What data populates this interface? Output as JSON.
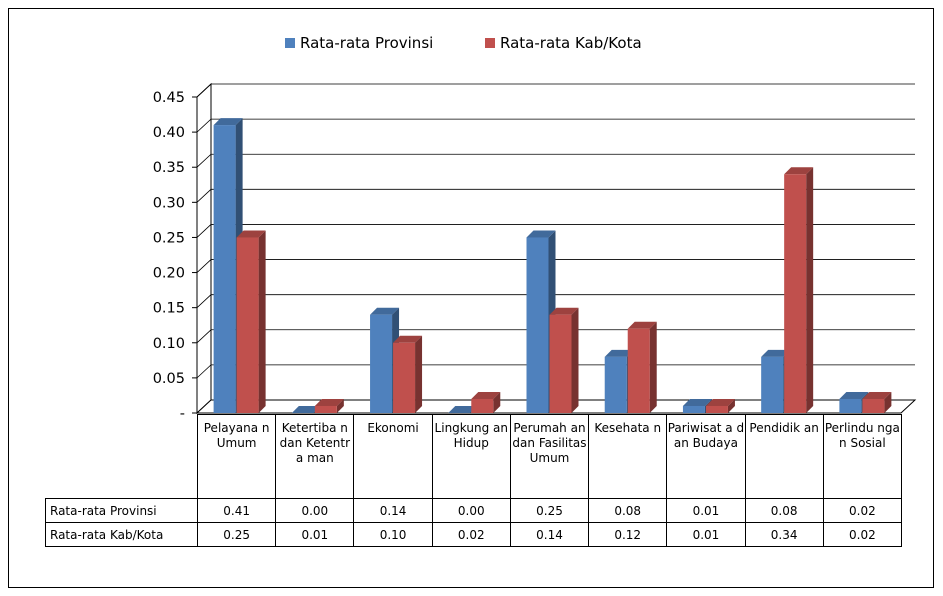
{
  "chart_data": {
    "type": "bar",
    "style": "3d-clustered-column",
    "categories": [
      "Pelayana n Umum",
      "Ketertiba n dan Ketentra man",
      "Ekonomi",
      "Lingkung an Hidup",
      "Perumah an dan Fasilitas Umum",
      "Kesehata n",
      "Pariwisat a dan Budaya",
      "Pendidik an",
      "Perlindu ngan Sosial"
    ],
    "series": [
      {
        "name": "Rata-rata Provinsi",
        "color": "#4F81BD",
        "values": [
          0.41,
          0.0,
          0.14,
          0.0,
          0.25,
          0.08,
          0.01,
          0.08,
          0.02
        ],
        "labels": [
          "0.41",
          "0.00",
          "0.14",
          "0.00",
          "0.25",
          "0.08",
          "0.01",
          "0.08",
          "0.02"
        ]
      },
      {
        "name": "Rata-rata Kab/Kota",
        "color": "#C0504D",
        "values": [
          0.25,
          0.01,
          0.1,
          0.02,
          0.14,
          0.12,
          0.01,
          0.34,
          0.02
        ],
        "labels": [
          "0.25",
          "0.01",
          "0.10",
          "0.02",
          "0.14",
          "0.12",
          "0.01",
          "0.34",
          "0.02"
        ]
      }
    ],
    "yticks": [
      "-",
      "0.05",
      "0.10",
      "0.15",
      "0.20",
      "0.25",
      "0.30",
      "0.35",
      "0.40",
      "0.45"
    ],
    "ylim": [
      0,
      0.45
    ],
    "grid": true,
    "legend": "top-center",
    "data_table": true
  }
}
